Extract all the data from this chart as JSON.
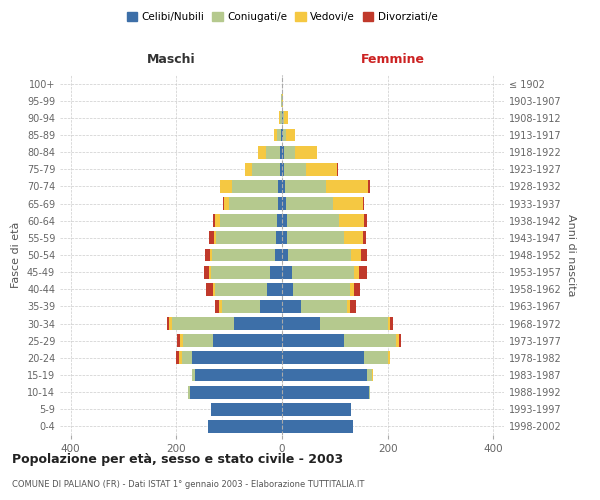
{
  "age_groups": [
    "0-4",
    "5-9",
    "10-14",
    "15-19",
    "20-24",
    "25-29",
    "30-34",
    "35-39",
    "40-44",
    "45-49",
    "50-54",
    "55-59",
    "60-64",
    "65-69",
    "70-74",
    "75-79",
    "80-84",
    "85-89",
    "90-94",
    "95-99",
    "100+"
  ],
  "birth_years": [
    "1998-2002",
    "1993-1997",
    "1988-1992",
    "1983-1987",
    "1978-1982",
    "1973-1977",
    "1968-1972",
    "1963-1967",
    "1958-1962",
    "1953-1957",
    "1948-1952",
    "1943-1947",
    "1938-1942",
    "1933-1937",
    "1928-1932",
    "1923-1927",
    "1918-1922",
    "1913-1917",
    "1908-1912",
    "1903-1907",
    "≤ 1902"
  ],
  "maschi": {
    "celibi": [
      140,
      135,
      175,
      165,
      170,
      130,
      90,
      42,
      28,
      22,
      14,
      12,
      10,
      8,
      7,
      4,
      3,
      2,
      0,
      0,
      0
    ],
    "coniugati": [
      0,
      0,
      2,
      5,
      20,
      58,
      118,
      72,
      98,
      112,
      118,
      112,
      108,
      92,
      88,
      52,
      28,
      8,
      3,
      1,
      0
    ],
    "vedovi": [
      0,
      0,
      0,
      0,
      5,
      5,
      5,
      5,
      5,
      5,
      5,
      5,
      8,
      10,
      22,
      14,
      14,
      5,
      2,
      0,
      0
    ],
    "divorziati": [
      0,
      0,
      0,
      0,
      5,
      5,
      5,
      8,
      12,
      8,
      8,
      10,
      5,
      2,
      0,
      0,
      0,
      0,
      0,
      0,
      0
    ]
  },
  "femmine": {
    "nubili": [
      135,
      130,
      165,
      160,
      155,
      118,
      72,
      35,
      20,
      18,
      12,
      10,
      10,
      8,
      6,
      4,
      3,
      2,
      2,
      0,
      0
    ],
    "coniugate": [
      0,
      0,
      2,
      10,
      45,
      98,
      128,
      88,
      108,
      118,
      118,
      108,
      98,
      88,
      78,
      42,
      22,
      5,
      2,
      0,
      0
    ],
    "vedove": [
      0,
      0,
      0,
      2,
      5,
      5,
      5,
      5,
      8,
      10,
      20,
      35,
      48,
      58,
      78,
      58,
      42,
      18,
      8,
      2,
      0
    ],
    "divorziate": [
      0,
      0,
      0,
      0,
      0,
      5,
      5,
      12,
      12,
      15,
      10,
      5,
      5,
      2,
      5,
      2,
      0,
      0,
      0,
      0,
      0
    ]
  },
  "colors": {
    "celibi_nubili": "#3d6fa8",
    "coniugati": "#b5c98e",
    "vedovi": "#f5c842",
    "divorziati": "#c0392b"
  },
  "xlim": [
    -420,
    420
  ],
  "xticks": [
    -400,
    -200,
    0,
    200,
    400
  ],
  "xticklabels": [
    "400",
    "200",
    "0",
    "200",
    "400"
  ],
  "title": "Popolazione per età, sesso e stato civile - 2003",
  "subtitle": "COMUNE DI PALIANO (FR) - Dati ISTAT 1° gennaio 2003 - Elaborazione TUTTITALIA.IT",
  "ylabel_left": "Fasce di età",
  "ylabel_right": "Anni di nascita",
  "label_maschi": "Maschi",
  "label_femmine": "Femmine",
  "legend_labels": [
    "Celibi/Nubili",
    "Coniugati/e",
    "Vedovi/e",
    "Divorziati/e"
  ],
  "bar_height": 0.75,
  "background_color": "#ffffff",
  "grid_color": "#cccccc"
}
